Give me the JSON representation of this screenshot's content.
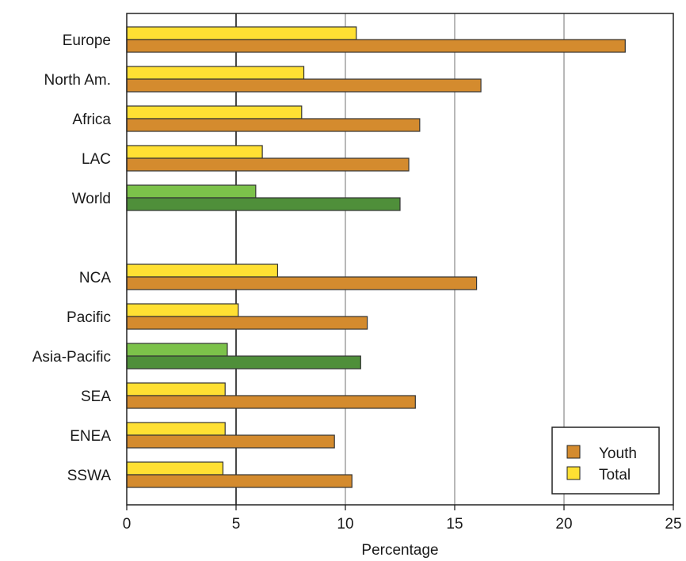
{
  "chart_data": {
    "type": "bar",
    "orientation": "horizontal",
    "xlabel": "Percentage",
    "xlim": [
      0,
      25
    ],
    "xticks": [
      "0",
      "5",
      "10",
      "15",
      "20",
      "25"
    ],
    "grid": "vertical",
    "legend_position": "bottom-right",
    "categories": [
      "Europe",
      "North Am.",
      "Africa",
      "LAC",
      "World",
      "NCA",
      "Pacific",
      "Asia-Pacific",
      "SEA",
      "ENEA",
      "SSWA"
    ],
    "series": [
      {
        "name": "Total",
        "colors": [
          "#ffe033",
          "#ffe033",
          "#ffe033",
          "#ffe033",
          "#7cc24a",
          "#ffe033",
          "#ffe033",
          "#7cc24a",
          "#ffe033",
          "#ffe033",
          "#ffe033"
        ],
        "values": [
          10.5,
          8.1,
          8.0,
          6.2,
          5.9,
          6.9,
          5.1,
          4.6,
          4.5,
          4.5,
          4.4
        ]
      },
      {
        "name": "Youth",
        "colors": [
          "#d48b2e",
          "#d48b2e",
          "#d48b2e",
          "#d48b2e",
          "#4f8f3a",
          "#d48b2e",
          "#d48b2e",
          "#4f8f3a",
          "#d48b2e",
          "#d48b2e",
          "#d48b2e"
        ],
        "values": [
          22.8,
          16.2,
          13.4,
          12.9,
          12.5,
          16.0,
          11.0,
          10.7,
          13.2,
          9.5,
          10.3
        ]
      }
    ],
    "legend": [
      {
        "label": "Youth",
        "color": "#d48b2e"
      },
      {
        "label": "Total",
        "color": "#ffe033"
      }
    ]
  }
}
